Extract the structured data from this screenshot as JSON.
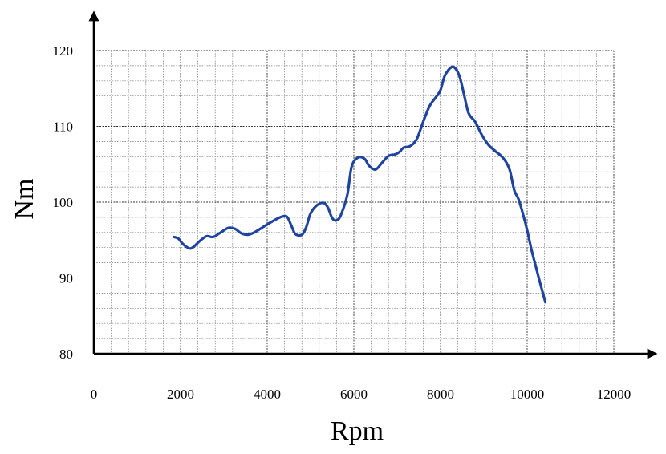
{
  "chart_data": {
    "type": "line",
    "title": "",
    "xlabel": "Rpm",
    "ylabel": "Nm",
    "xlim": [
      0,
      12000
    ],
    "ylim": [
      80,
      120
    ],
    "x_ticks": [
      0,
      2000,
      4000,
      6000,
      8000,
      10000,
      12000
    ],
    "y_ticks": [
      80,
      90,
      100,
      110,
      120
    ],
    "grid": true,
    "legend": "none",
    "series": [
      {
        "color": "#1f44a0",
        "points": [
          [
            1850,
            95.4
          ],
          [
            1950,
            95.2
          ],
          [
            2050,
            94.5
          ],
          [
            2200,
            93.9
          ],
          [
            2300,
            94.1
          ],
          [
            2450,
            94.9
          ],
          [
            2600,
            95.5
          ],
          [
            2750,
            95.4
          ],
          [
            2900,
            95.9
          ],
          [
            3100,
            96.6
          ],
          [
            3250,
            96.5
          ],
          [
            3400,
            95.9
          ],
          [
            3550,
            95.7
          ],
          [
            3700,
            96.0
          ],
          [
            3900,
            96.7
          ],
          [
            4100,
            97.4
          ],
          [
            4300,
            98.0
          ],
          [
            4450,
            98.1
          ],
          [
            4550,
            97.0
          ],
          [
            4650,
            95.8
          ],
          [
            4800,
            95.7
          ],
          [
            4900,
            96.7
          ],
          [
            5000,
            98.5
          ],
          [
            5150,
            99.6
          ],
          [
            5300,
            99.9
          ],
          [
            5400,
            99.3
          ],
          [
            5500,
            97.9
          ],
          [
            5600,
            97.6
          ],
          [
            5700,
            98.3
          ],
          [
            5850,
            101.0
          ],
          [
            5950,
            104.7
          ],
          [
            6100,
            105.9
          ],
          [
            6250,
            105.7
          ],
          [
            6350,
            104.8
          ],
          [
            6500,
            104.3
          ],
          [
            6650,
            105.2
          ],
          [
            6800,
            106.1
          ],
          [
            6950,
            106.3
          ],
          [
            7050,
            106.6
          ],
          [
            7150,
            107.2
          ],
          [
            7300,
            107.4
          ],
          [
            7450,
            108.3
          ],
          [
            7600,
            110.6
          ],
          [
            7750,
            112.7
          ],
          [
            7900,
            113.9
          ],
          [
            8000,
            114.8
          ],
          [
            8100,
            116.7
          ],
          [
            8250,
            117.8
          ],
          [
            8350,
            117.6
          ],
          [
            8450,
            116.4
          ],
          [
            8550,
            114.0
          ],
          [
            8650,
            111.7
          ],
          [
            8800,
            110.6
          ],
          [
            8950,
            108.9
          ],
          [
            9100,
            107.6
          ],
          [
            9250,
            106.8
          ],
          [
            9400,
            106.1
          ],
          [
            9500,
            105.4
          ],
          [
            9600,
            104.2
          ],
          [
            9700,
            101.6
          ],
          [
            9800,
            100.4
          ],
          [
            9900,
            98.5
          ],
          [
            10000,
            96.3
          ],
          [
            10100,
            93.7
          ],
          [
            10200,
            91.5
          ],
          [
            10300,
            89.3
          ],
          [
            10420,
            86.8
          ]
        ]
      }
    ]
  }
}
